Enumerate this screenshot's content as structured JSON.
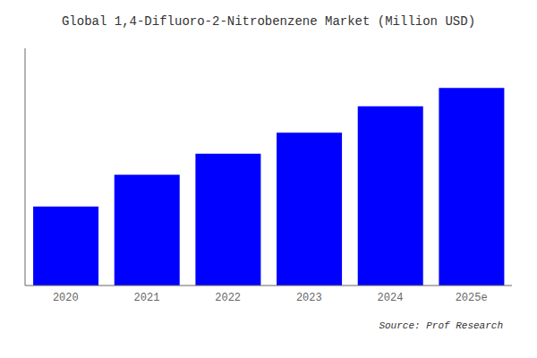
{
  "chart_data": {
    "type": "bar",
    "title": "Global 1,4-Difluoro-2-Nitrobenzene Market (Million USD)",
    "categories": [
      "2020",
      "2021",
      "2022",
      "2023",
      "2024",
      "2025e"
    ],
    "values": [
      30,
      42,
      50,
      58,
      68,
      75
    ],
    "color": "#0000FF",
    "ylim": [
      0,
      90
    ],
    "tick_labels": "x",
    "grid": false,
    "annotation": "Source: Prof Research"
  }
}
